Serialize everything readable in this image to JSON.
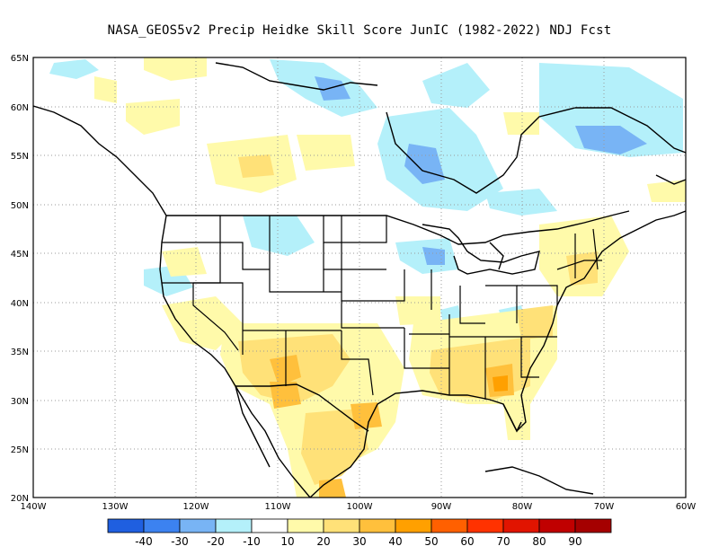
{
  "title": "NASA_GEOS5v2 Precip Heidke Skill Score JunIC (1982-2022) NDJ Fcst",
  "lat_labels": [
    "65N",
    "60N",
    "55N",
    "50N",
    "45N",
    "40N",
    "35N",
    "30N",
    "25N",
    "20N"
  ],
  "lon_labels": [
    "140W",
    "130W",
    "120W",
    "110W",
    "100W",
    "90W",
    "80W",
    "70W",
    "60W"
  ],
  "colorbar": {
    "colors": [
      "#1f5fe0",
      "#3c82f0",
      "#78b4f5",
      "#b4f0fa",
      "#ffffff",
      "#fffaaa",
      "#ffe178",
      "#ffc03c",
      "#ffa000",
      "#ff6000",
      "#ff3200",
      "#e11400",
      "#c00000",
      "#a50000"
    ],
    "labels": [
      "-40",
      "-30",
      "-20",
      "-10",
      "10",
      "20",
      "30",
      "40",
      "50",
      "60",
      "70",
      "80",
      "90"
    ]
  },
  "legend_colors": {
    "neg_strong": "#3c82f0",
    "neg_mid": "#78b4f5",
    "neg_weak": "#b4f0fa",
    "pos_weak": "#fffaaa",
    "pos_mid": "#ffe178",
    "pos_strong": "#ffc03c",
    "pos_vstrong": "#ffa000"
  }
}
